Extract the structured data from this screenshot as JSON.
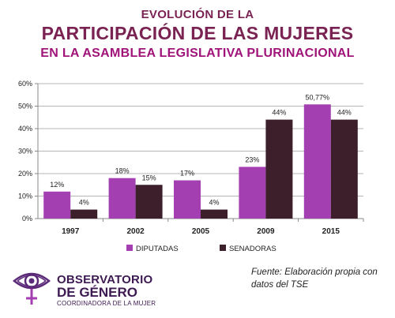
{
  "title": {
    "line1": "EVOLUCIÓN DE LA",
    "line2": "PARTICIPACIÓN DE LAS MUJERES",
    "line3": "EN LA ASAMBLEA LEGISLATIVA PLURINACIONAL"
  },
  "chart_data": {
    "type": "bar",
    "categories": [
      "1997",
      "2002",
      "2005",
      "2009",
      "2015"
    ],
    "series": [
      {
        "name": "DIPUTADAS",
        "values": [
          12,
          18,
          17,
          23,
          50.77
        ],
        "labels": [
          "12%",
          "18%",
          "17%",
          "23%",
          "50,77%"
        ],
        "color": "#a43fb1"
      },
      {
        "name": "SENADORAS",
        "values": [
          4,
          15,
          4,
          44,
          44
        ],
        "labels": [
          "4%",
          "15%",
          "4%",
          "44%",
          "44%"
        ],
        "color": "#3d1f2b"
      }
    ],
    "ylim": [
      0,
      60
    ],
    "yticks": [
      "0%",
      "10%",
      "20%",
      "30%",
      "40%",
      "50%",
      "60%"
    ],
    "grid": true,
    "legend": "bottom"
  },
  "source": "Fuente: Elaboración propia con datos del TSE",
  "logo": {
    "name_line1": "OBSERVATORIO",
    "name_line2": "DE GÉNERO",
    "subtitle": "COORDINADORA DE LA MUJER"
  },
  "colors": {
    "title": "#7a2353",
    "subtitle": "#a0147a",
    "logo": "#3d1a52"
  }
}
